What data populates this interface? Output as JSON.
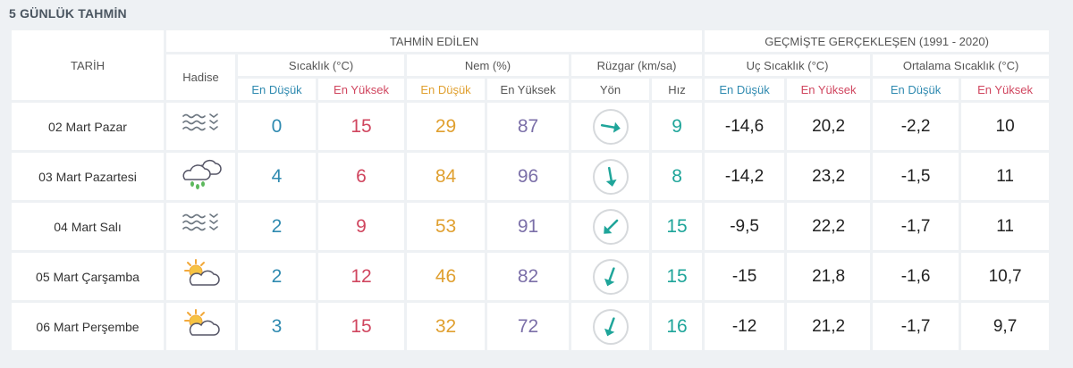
{
  "title": "5 GÜNLÜK TAHMİN",
  "header": {
    "date_col": "TARİH",
    "forecast_group": "TAHMİN EDİLEN",
    "past_group": "GEÇMİŞTE GERÇEKLEŞEN (1991 - 2020)",
    "event": "Hadise",
    "temp": "Sıcaklık (°C)",
    "humidity": "Nem (%)",
    "wind": "Rüzgar (km/sa)",
    "extreme_temp": "Uç Sıcaklık (°C)",
    "avg_temp": "Ortalama Sıcaklık (°C)",
    "low": "En Düşük",
    "high": "En Yüksek",
    "direction": "Yön",
    "speed": "Hız"
  },
  "colors": {
    "low": "#2f8ab0",
    "high": "#d0465f",
    "hum_low": "#e0a030",
    "hum_high": "#7b6fa8",
    "wind": "#1fa59a"
  },
  "rows": [
    {
      "date": "02 Mart Pazar",
      "icon": "fog-icon",
      "tmin": "0",
      "tmax": "15",
      "hmin": "29",
      "hmax": "87",
      "wind_dir_deg": 100,
      "wind_speed": "9",
      "ext_low": "-14,6",
      "ext_high": "20,2",
      "avg_low": "-2,2",
      "avg_high": "10"
    },
    {
      "date": "03 Mart Pazartesi",
      "icon": "rain-cloud-icon",
      "tmin": "4",
      "tmax": "6",
      "hmin": "84",
      "hmax": "96",
      "wind_dir_deg": 170,
      "wind_speed": "8",
      "ext_low": "-14,2",
      "ext_high": "23,2",
      "avg_low": "-1,5",
      "avg_high": "11"
    },
    {
      "date": "04 Mart Salı",
      "icon": "fog-icon",
      "tmin": "2",
      "tmax": "9",
      "hmin": "53",
      "hmax": "91",
      "wind_dir_deg": 225,
      "wind_speed": "15",
      "ext_low": "-9,5",
      "ext_high": "22,2",
      "avg_low": "-1,7",
      "avg_high": "11"
    },
    {
      "date": "05 Mart Çarşamba",
      "icon": "partly-cloudy-icon",
      "tmin": "2",
      "tmax": "12",
      "hmin": "46",
      "hmax": "82",
      "wind_dir_deg": 200,
      "wind_speed": "15",
      "ext_low": "-15",
      "ext_high": "21,8",
      "avg_low": "-1,6",
      "avg_high": "10,7"
    },
    {
      "date": "06 Mart Perşembe",
      "icon": "partly-cloudy-icon",
      "tmin": "3",
      "tmax": "15",
      "hmin": "32",
      "hmax": "72",
      "wind_dir_deg": 200,
      "wind_speed": "16",
      "ext_low": "-12",
      "ext_high": "21,2",
      "avg_low": "-1,7",
      "avg_high": "9,7"
    }
  ]
}
